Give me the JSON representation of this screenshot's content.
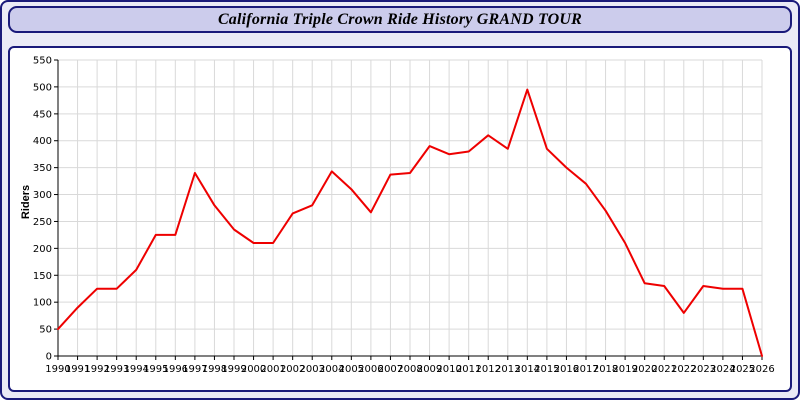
{
  "header": {
    "title": "California Triple Crown Ride History GRAND TOUR"
  },
  "chart_data": {
    "type": "line",
    "title": "California Triple Crown Ride History GRAND TOUR",
    "xlabel": "",
    "ylabel": "Riders",
    "legend": "none",
    "grid": true,
    "line_color": "#ee0000",
    "grid_color": "#d9d9d9",
    "ylim": [
      0,
      550
    ],
    "ytick_step": 50,
    "categories": [
      "1990",
      "1991",
      "1992",
      "1993",
      "1994",
      "1995",
      "1996",
      "1997",
      "1998",
      "1999",
      "2000",
      "2001",
      "2002",
      "2003",
      "2004",
      "2005",
      "2006",
      "2007",
      "2008",
      "2009",
      "2010",
      "2011",
      "2012",
      "2013",
      "2014",
      "2015",
      "2016",
      "2017",
      "2018",
      "2019",
      "2020",
      "2021",
      "2022",
      "2023",
      "2024",
      "2025",
      "2026"
    ],
    "values": [
      50,
      90,
      125,
      125,
      160,
      225,
      225,
      340,
      280,
      235,
      210,
      210,
      265,
      280,
      343,
      310,
      267,
      337,
      340,
      390,
      375,
      380,
      410,
      385,
      495,
      385,
      350,
      320,
      270,
      210,
      135,
      130,
      80,
      130,
      125,
      125,
      0
    ]
  }
}
